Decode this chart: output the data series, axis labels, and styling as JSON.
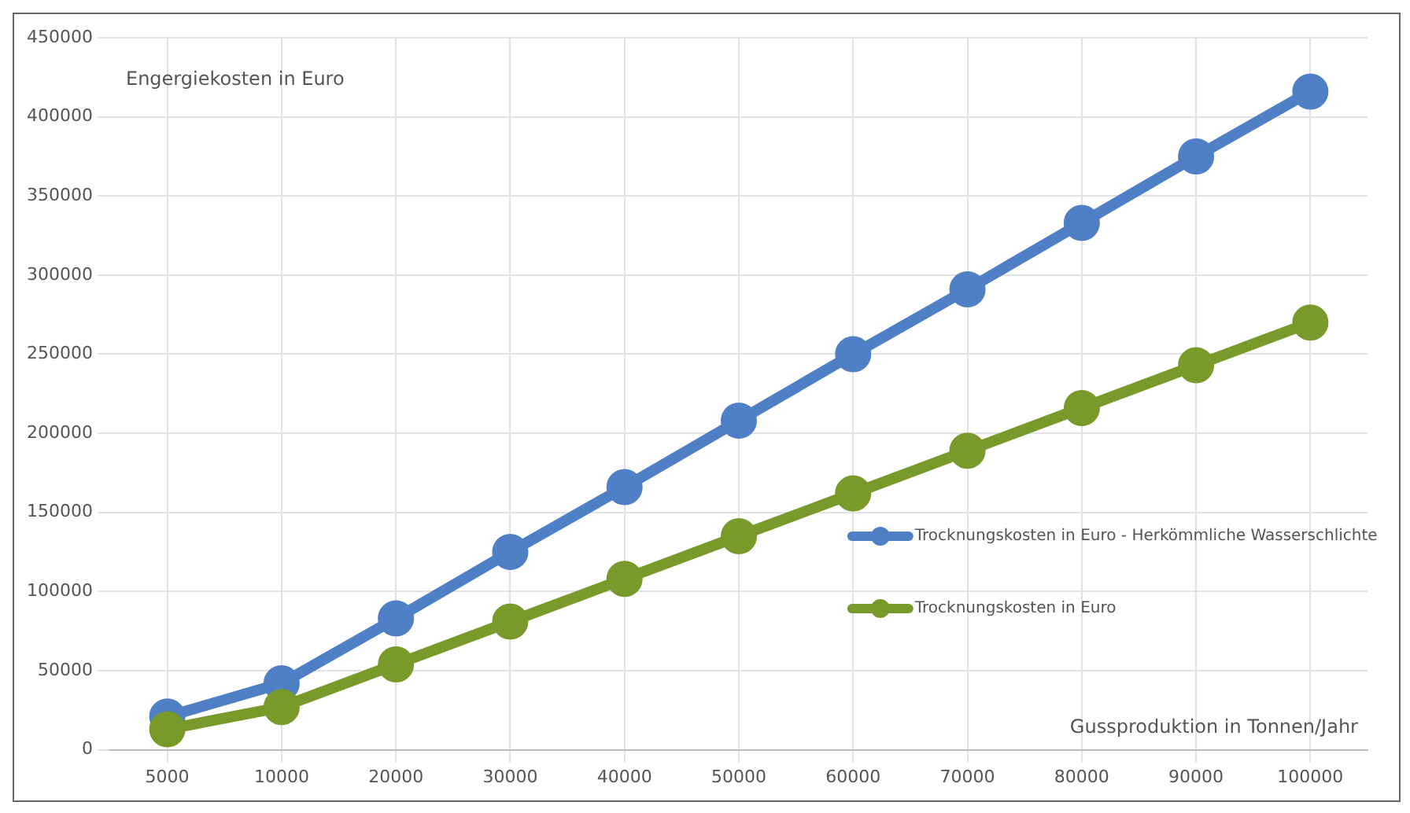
{
  "chart_data": {
    "type": "line",
    "ylabel": "Engergiekosten in Euro",
    "xlabel": "Gussproduktion in Tonnen/Jahr",
    "categories": [
      "5000",
      "10000",
      "20000",
      "30000",
      "40000",
      "50000",
      "60000",
      "70000",
      "80000",
      "90000",
      "100000"
    ],
    "series": [
      {
        "name": "Trocknungskosten in Euro - Herkömmliche Wasserschlichte",
        "color": "#4f7fc4",
        "values": [
          21000,
          42000,
          83000,
          125000,
          166000,
          208000,
          250000,
          291000,
          333000,
          375000,
          416000
        ]
      },
      {
        "name": "Trocknungskosten in Euro",
        "color": "#779a2a",
        "values": [
          13000,
          27000,
          54000,
          81000,
          108000,
          135000,
          162000,
          189000,
          216000,
          243000,
          270000
        ]
      }
    ],
    "ylim": [
      0,
      450000
    ],
    "yticks": [
      0,
      50000,
      100000,
      150000,
      200000,
      250000,
      300000,
      350000,
      400000,
      450000
    ],
    "grid": true,
    "legend": "right",
    "marker": "circle",
    "line_style": "solid"
  }
}
